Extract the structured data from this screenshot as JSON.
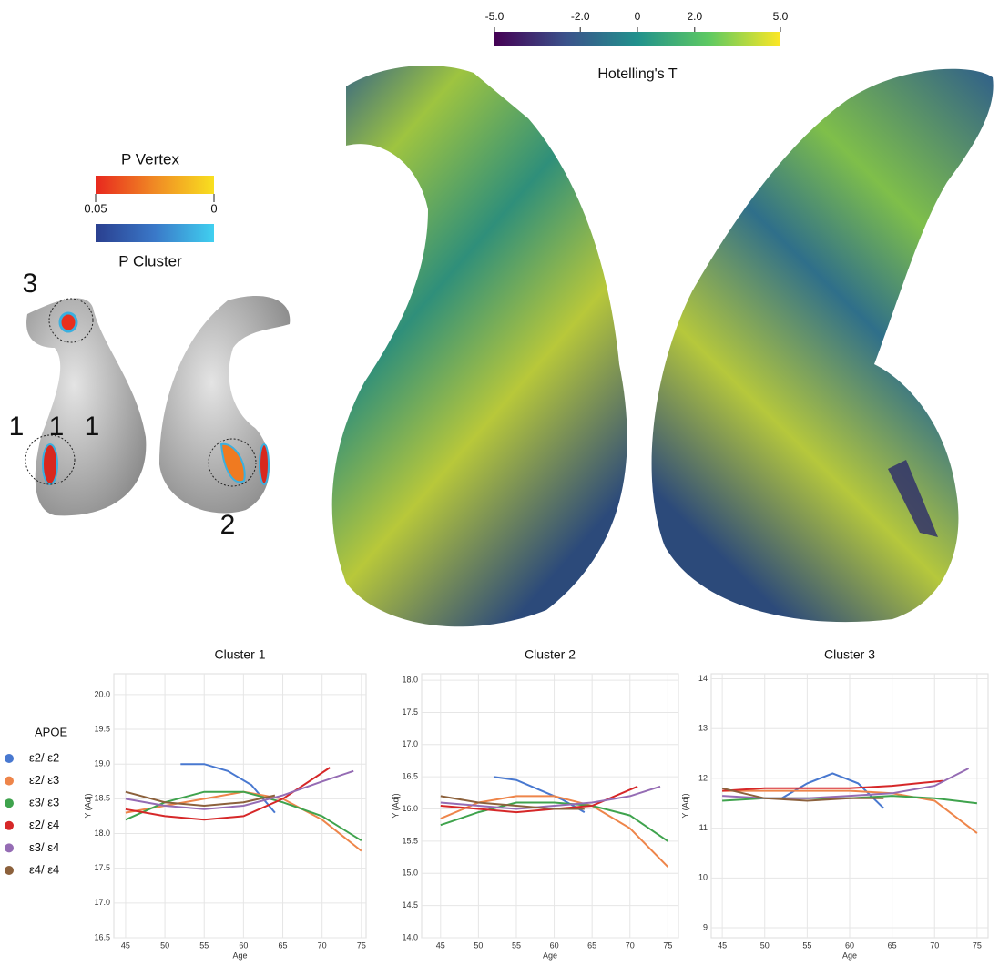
{
  "figure": {
    "t_colorbar": {
      "label": "Hotelling's T",
      "lim": [
        -5,
        5
      ],
      "ticks": [
        {
          "value": -5,
          "label": "-5.0"
        },
        {
          "value": -2,
          "label": "-2.0"
        },
        0,
        {
          "value": 2,
          "label": "2.0"
        },
        {
          "value": 5,
          "label": "5.0"
        }
      ]
    },
    "p_colorbar": {
      "vertex_label": "P Vertex",
      "cluster_label": "P Cluster",
      "lim": [
        0.05,
        0
      ],
      "ticks": [
        0.05,
        0
      ]
    },
    "region_labels": [
      "3",
      "1",
      "1",
      "1",
      "2"
    ],
    "legend_title": "APOE"
  },
  "chart_data": [
    {
      "type": "line",
      "title": "Cluster 1",
      "x_label": "Age",
      "y_label": "Y (Adj)",
      "grid": true,
      "xlim": [
        43.5,
        75.6
      ],
      "ylim": [
        16.5,
        20.3
      ],
      "xticks": [
        45,
        50,
        55,
        60,
        65,
        70,
        75
      ],
      "yticks": [
        16.5,
        {
          "value": 17,
          "label": "17.0"
        },
        17.5,
        {
          "value": 18,
          "label": "18.0"
        },
        18.5,
        {
          "value": 19,
          "label": "19.0"
        },
        19.5,
        {
          "value": 20,
          "label": "20.0"
        }
      ],
      "series": [
        {
          "name": "ε2/ ε2",
          "color": "#4878d0",
          "x": [
            52,
            55,
            58,
            61,
            64
          ],
          "values": [
            19.0,
            19.0,
            18.9,
            18.7,
            18.3
          ]
        },
        {
          "name": "ε2/ ε3",
          "color": "#ee854a",
          "x": [
            45,
            50,
            55,
            60,
            65,
            70,
            75
          ],
          "values": [
            18.3,
            18.4,
            18.5,
            18.6,
            18.5,
            18.2,
            17.75
          ]
        },
        {
          "name": "ε3/ ε3",
          "color": "#3fa34d",
          "x": [
            45,
            50,
            55,
            60,
            65,
            70,
            75
          ],
          "values": [
            18.2,
            18.45,
            18.6,
            18.6,
            18.45,
            18.25,
            17.9
          ]
        },
        {
          "name": "ε2/ ε4",
          "color": "#d62728",
          "x": [
            45,
            50,
            55,
            60,
            65,
            71
          ],
          "values": [
            18.35,
            18.25,
            18.2,
            18.25,
            18.5,
            18.95
          ]
        },
        {
          "name": "ε3/ ε4",
          "color": "#956cb4",
          "x": [
            45,
            50,
            55,
            60,
            65,
            70,
            74
          ],
          "values": [
            18.5,
            18.4,
            18.35,
            18.4,
            18.55,
            18.75,
            18.9
          ]
        },
        {
          "name": "ε4/ ε4",
          "color": "#8c613c",
          "x": [
            45,
            50,
            55,
            60,
            64
          ],
          "values": [
            18.6,
            18.45,
            18.4,
            18.45,
            18.55
          ]
        }
      ]
    },
    {
      "type": "line",
      "title": "Cluster 2",
      "x_label": "Age",
      "y_label": "Y (Adj)",
      "grid": true,
      "xlim": [
        42.5,
        76.4
      ],
      "ylim": [
        14.0,
        18.1
      ],
      "xticks": [
        45,
        50,
        55,
        60,
        65,
        70,
        75
      ],
      "yticks": [
        {
          "value": 14,
          "label": "14.0"
        },
        14.5,
        {
          "value": 15,
          "label": "15.0"
        },
        15.5,
        {
          "value": 16,
          "label": "16.0"
        },
        16.5,
        {
          "value": 17,
          "label": "17.0"
        },
        17.5,
        {
          "value": 18,
          "label": "18.0"
        }
      ],
      "series": [
        {
          "name": "ε2/ ε2",
          "color": "#4878d0",
          "x": [
            52,
            55,
            58,
            61,
            64
          ],
          "values": [
            16.5,
            16.45,
            16.3,
            16.15,
            15.95
          ]
        },
        {
          "name": "ε2/ ε3",
          "color": "#ee854a",
          "x": [
            45,
            50,
            55,
            60,
            65,
            70,
            75
          ],
          "values": [
            15.85,
            16.1,
            16.2,
            16.2,
            16.05,
            15.7,
            15.1
          ]
        },
        {
          "name": "ε3/ ε3",
          "color": "#3fa34d",
          "x": [
            45,
            50,
            55,
            60,
            65,
            70,
            75
          ],
          "values": [
            15.75,
            15.95,
            16.1,
            16.1,
            16.05,
            15.9,
            15.5
          ]
        },
        {
          "name": "ε2/ ε4",
          "color": "#d62728",
          "x": [
            45,
            50,
            55,
            60,
            65,
            71
          ],
          "values": [
            16.05,
            16.0,
            15.95,
            16.0,
            16.05,
            16.35
          ]
        },
        {
          "name": "ε3/ ε4",
          "color": "#956cb4",
          "x": [
            45,
            50,
            55,
            60,
            65,
            70,
            74
          ],
          "values": [
            16.1,
            16.05,
            16.0,
            16.05,
            16.1,
            16.2,
            16.35
          ]
        },
        {
          "name": "ε4/ ε4",
          "color": "#8c613c",
          "x": [
            45,
            50,
            55,
            60,
            64
          ],
          "values": [
            16.2,
            16.1,
            16.05,
            16.0,
            16.0
          ]
        }
      ]
    },
    {
      "type": "line",
      "title": "Cluster 3",
      "x_label": "Age",
      "y_label": "Y (Adj)",
      "grid": true,
      "xlim": [
        43.7,
        76.3
      ],
      "ylim": [
        8.8,
        14.1
      ],
      "xticks": [
        45,
        50,
        55,
        60,
        65,
        70,
        75
      ],
      "yticks": [
        9,
        10,
        11,
        12,
        13,
        14
      ],
      "series": [
        {
          "name": "ε2/ ε2",
          "color": "#4878d0",
          "x": [
            52,
            55,
            58,
            61,
            64
          ],
          "values": [
            11.6,
            11.9,
            12.1,
            11.9,
            11.4
          ]
        },
        {
          "name": "ε2/ ε3",
          "color": "#ee854a",
          "x": [
            45,
            50,
            55,
            60,
            65,
            70,
            75
          ],
          "values": [
            11.75,
            11.75,
            11.75,
            11.75,
            11.7,
            11.55,
            10.9
          ]
        },
        {
          "name": "ε3/ ε3",
          "color": "#3fa34d",
          "x": [
            45,
            50,
            55,
            60,
            65,
            70,
            75
          ],
          "values": [
            11.55,
            11.6,
            11.6,
            11.6,
            11.65,
            11.6,
            11.5
          ]
        },
        {
          "name": "ε2/ ε4",
          "color": "#d62728",
          "x": [
            45,
            50,
            55,
            60,
            65,
            71
          ],
          "values": [
            11.75,
            11.8,
            11.8,
            11.8,
            11.85,
            11.95
          ]
        },
        {
          "name": "ε3/ ε4",
          "color": "#956cb4",
          "x": [
            45,
            50,
            55,
            60,
            65,
            70,
            74
          ],
          "values": [
            11.65,
            11.6,
            11.6,
            11.65,
            11.7,
            11.85,
            12.2
          ]
        },
        {
          "name": "ε4/ ε4",
          "color": "#8c613c",
          "x": [
            45,
            50,
            55,
            60,
            64
          ],
          "values": [
            11.8,
            11.6,
            11.55,
            11.6,
            11.6
          ]
        }
      ]
    }
  ]
}
